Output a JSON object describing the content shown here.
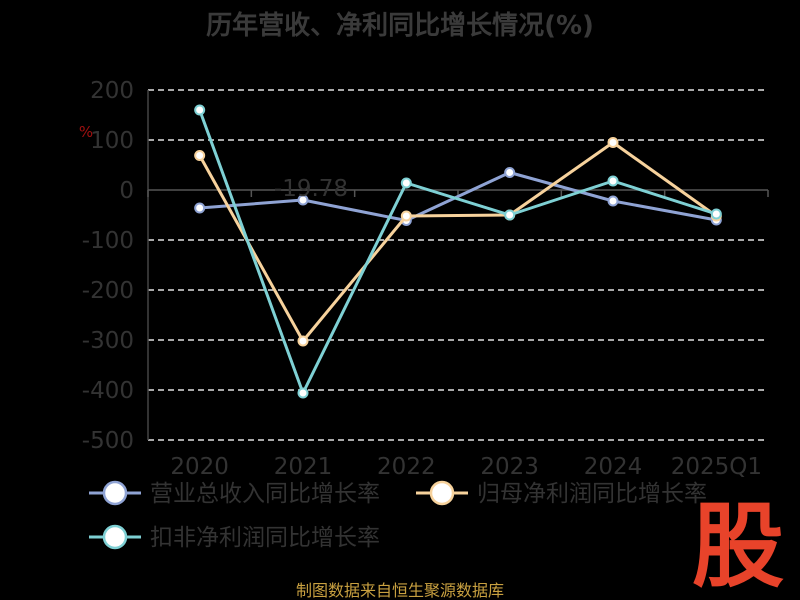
{
  "chart_data": {
    "type": "line",
    "title": "历年营收、净利同比增长情况(%)",
    "ylabel": "%",
    "categories": [
      "2020",
      "2021",
      "2022",
      "2023",
      "2024",
      "2025Q1"
    ],
    "ylim": [
      -500,
      200
    ],
    "yticks": [
      200,
      100,
      0,
      -100,
      -200,
      -300,
      -400,
      -500
    ],
    "grid": true,
    "legend_position": "bottom",
    "series": [
      {
        "name": "营业总收入同比增长率",
        "color": "#8fa3d4",
        "values": [
          -36,
          -20,
          -61,
          35,
          -22,
          -60
        ]
      },
      {
        "name": "归母净利润同比增长率",
        "color": "#f7d29c",
        "values": [
          69,
          -302,
          -52,
          -50,
          95,
          -52
        ]
      },
      {
        "name": "扣非净利润同比增长率",
        "color": "#7ed0d4",
        "values": [
          160,
          -406,
          14,
          -50,
          18,
          -48
        ]
      }
    ],
    "data_labels": [
      {
        "series": 0,
        "index": 1,
        "text": "-19.78"
      }
    ]
  },
  "footer": {
    "source": "制图数据来自恒生聚源数据库"
  },
  "logo": {
    "text": "股"
  }
}
